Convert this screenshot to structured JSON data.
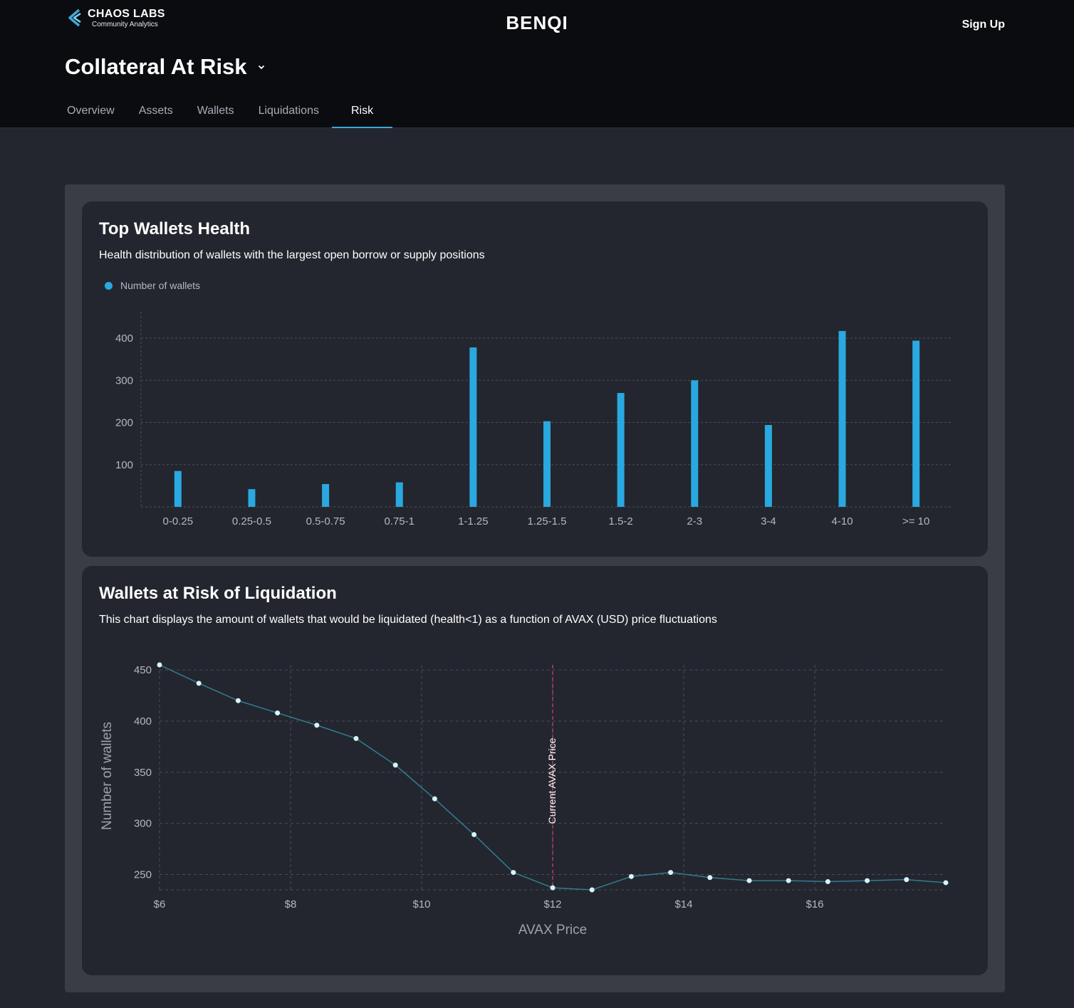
{
  "header": {
    "logo_title": "CHAOS LABS",
    "logo_subtitle": "Community Analytics",
    "brand": "BENQI",
    "signup_label": "Sign Up",
    "page_title": "Collateral At Risk",
    "tabs": [
      {
        "label": "Overview"
      },
      {
        "label": "Assets"
      },
      {
        "label": "Wallets"
      },
      {
        "label": "Liquidations"
      },
      {
        "label": "Risk",
        "active": true
      }
    ]
  },
  "health_card": {
    "title": "Top Wallets Health",
    "subtitle": "Health distribution of wallets with the largest open borrow or supply positions",
    "legend_label": "Number of wallets"
  },
  "risk_card": {
    "title": "Wallets at Risk of Liquidation",
    "subtitle": "This chart displays the amount of wallets that would be liquidated (health<1) as a function of AVAX (USD) price fluctuations"
  },
  "colors": {
    "accent": "#3da7d6",
    "bar": "#2aa8e0",
    "line": "#2f7d93",
    "point": "#d8f4f7",
    "marker": "#c0395a"
  },
  "chart_data": [
    {
      "type": "bar",
      "title": "Top Wallets Health",
      "legend": [
        "Number of wallets"
      ],
      "categories": [
        "0-0.25",
        "0.25-0.5",
        "0.5-0.75",
        "0.75-1",
        "1-1.25",
        "1.25-1.5",
        "1.5-2",
        "2-3",
        "3-4",
        "4-10",
        ">= 10"
      ],
      "series": [
        {
          "name": "Number of wallets",
          "values": [
            85,
            42,
            54,
            58,
            378,
            203,
            270,
            300,
            194,
            417,
            394
          ]
        }
      ],
      "yticks": [
        100,
        200,
        300,
        400
      ],
      "ylim": [
        0,
        460
      ],
      "grid": true
    },
    {
      "type": "line",
      "title": "Wallets at Risk of Liquidation",
      "xlabel": "AVAX Price",
      "ylabel": "Number of wallets",
      "x": [
        6,
        6.6,
        7.2,
        7.8,
        8.4,
        9.0,
        9.6,
        10.2,
        10.8,
        11.4,
        12.0,
        12.6,
        13.2,
        13.8,
        14.4,
        15.0,
        15.6,
        16.2,
        16.8,
        17.4,
        18.0
      ],
      "values": [
        455,
        437,
        420,
        408,
        396,
        383,
        357,
        324,
        289,
        252,
        237,
        235,
        248,
        252,
        247,
        244,
        244,
        243,
        244,
        245,
        242
      ],
      "xticks": [
        6,
        8,
        10,
        12,
        14,
        16
      ],
      "xtick_labels": [
        "$6",
        "$8",
        "$10",
        "$12",
        "$14",
        "$16"
      ],
      "yticks": [
        250,
        300,
        350,
        400,
        450
      ],
      "xlim": [
        6,
        18
      ],
      "ylim": [
        235,
        455
      ],
      "marker": {
        "x": 12,
        "label": "Current AVAX Price"
      },
      "grid": true
    }
  ]
}
